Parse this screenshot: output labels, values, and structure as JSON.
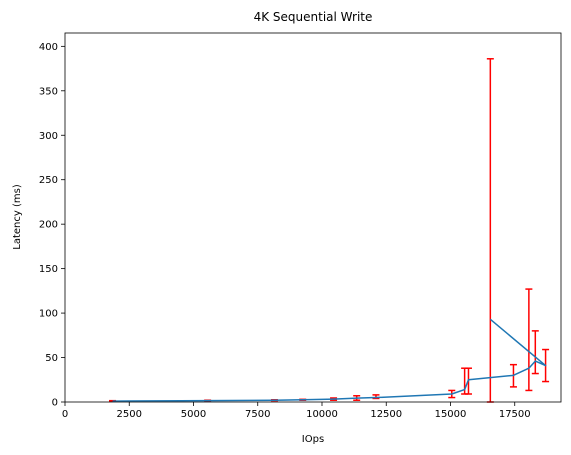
{
  "chart_data": {
    "type": "line",
    "title": "4K  Sequential Write",
    "xlabel": "IOps",
    "ylabel": "Latency (ms)",
    "xlim": [
      0,
      19300
    ],
    "ylim": [
      0,
      415
    ],
    "xticks": [
      0,
      2500,
      5000,
      7500,
      10000,
      12500,
      15000,
      17500
    ],
    "yticks": [
      0,
      50,
      100,
      150,
      200,
      250,
      300,
      350,
      400
    ],
    "grid": false,
    "line_color": "#1f77b4",
    "errorbar_color": "#ff0000",
    "series": [
      {
        "x": [
          1850,
          5550,
          8150,
          9250,
          10450,
          11350,
          12100,
          15050,
          15550,
          15700,
          17450,
          18050,
          18300,
          18700,
          16550
        ],
        "y": [
          1,
          1.6,
          2,
          2.6,
          3.3,
          4.3,
          5,
          9,
          14,
          25,
          30,
          38,
          46,
          41,
          93
        ],
        "yerr_low": [
          0,
          0.6,
          0.5,
          0.6,
          1.3,
          2.3,
          1,
          4,
          5,
          16,
          13,
          25,
          14,
          18,
          93
        ],
        "yerr_high": [
          0.5,
          0.4,
          0.5,
          0.4,
          1.2,
          2.7,
          3,
          4,
          24,
          13,
          12,
          89,
          34,
          18,
          293
        ]
      }
    ]
  }
}
